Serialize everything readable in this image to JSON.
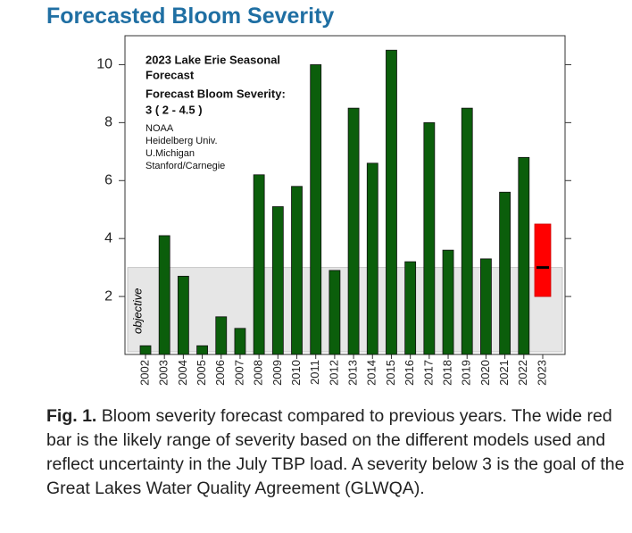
{
  "header": {
    "title": "Forecasted Bloom Severity"
  },
  "chart_data": {
    "type": "bar",
    "categories": [
      "2002",
      "2003",
      "2004",
      "2005",
      "2006",
      "2007",
      "2008",
      "2009",
      "2010",
      "2011",
      "2012",
      "2013",
      "2014",
      "2015",
      "2016",
      "2017",
      "2018",
      "2019",
      "2020",
      "2021",
      "2022",
      "2023"
    ],
    "values": [
      0.3,
      4.1,
      2.7,
      0.3,
      1.3,
      0.9,
      6.2,
      5.1,
      5.8,
      10.0,
      2.9,
      8.5,
      6.6,
      10.5,
      3.2,
      8.0,
      3.6,
      8.5,
      3.3,
      5.6,
      6.8,
      null
    ],
    "color": "#0b5e0b",
    "forecast": {
      "value": 3,
      "low": 2,
      "high": 4.5,
      "color": "#ff0000"
    },
    "objective": {
      "label": "objective",
      "value": 3,
      "color": "#e6e6e6"
    },
    "ylim": [
      0,
      11
    ],
    "yticks": [
      2,
      4,
      6,
      8,
      10
    ],
    "grid": false,
    "annotation": [
      {
        "text": "2023 Lake Erie Seasonal",
        "bold": true
      },
      {
        "text": "Forecast",
        "bold": true
      },
      {
        "text": "Forecast Bloom Severity:",
        "bold": true
      },
      {
        "text": " 3 ( 2 - 4.5 )",
        "bold": true
      },
      {
        "text": "NOAA",
        "bold": false
      },
      {
        "text": "Heidelberg Univ.",
        "bold": false
      },
      {
        "text": "U.Michigan",
        "bold": false
      },
      {
        "text": "Stanford/Carnegie",
        "bold": false
      }
    ]
  },
  "caption": {
    "label": "Fig. 1.",
    "text": "Bloom severity forecast compared to previous years. The wide red bar is the likely range of severity based on the different models used and reflect uncertainty in the July TBP load. A severity below 3 is the goal of the Great Lakes Water Quality Agreement (GLWQA)."
  }
}
